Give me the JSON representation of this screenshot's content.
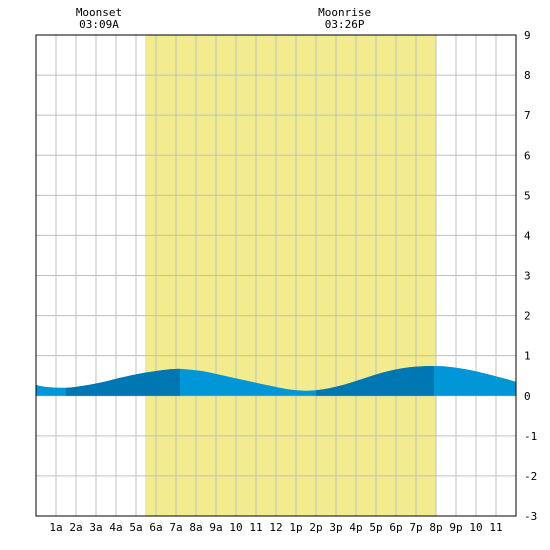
{
  "chart_data": {
    "type": "area",
    "title": "",
    "xlabel": "",
    "ylabel": "",
    "x_tick_labels": [
      "1a",
      "2a",
      "3a",
      "4a",
      "5a",
      "6a",
      "7a",
      "8a",
      "9a",
      "10",
      "11",
      "12",
      "1p",
      "2p",
      "3p",
      "4p",
      "5p",
      "6p",
      "7p",
      "8p",
      "9p",
      "10",
      "11"
    ],
    "y_ticks": [
      -3,
      -2,
      -1,
      0,
      1,
      2,
      3,
      4,
      5,
      6,
      7,
      8,
      9
    ],
    "xlim_hours": [
      0,
      24
    ],
    "ylim": [
      -3,
      9
    ],
    "grid": true,
    "daylight": {
      "start": "05:27",
      "end": "20:00"
    },
    "moon_events": [
      {
        "label": "Moonset",
        "time": "03:09A",
        "hour": 3.15
      },
      {
        "label": "Moonrise",
        "time": "03:26P",
        "hour": 15.43
      }
    ],
    "tide_series": {
      "x_hours": [
        0,
        0.5,
        1.5,
        2.5,
        3.5,
        4.5,
        5.5,
        6.5,
        7.1,
        7.5,
        8.5,
        9.5,
        10.5,
        11.5,
        12.5,
        13.2,
        13.8,
        14.5,
        15.5,
        16.5,
        17.5,
        18.5,
        19.5,
        19.9,
        20.5,
        21.5,
        22.5,
        23.5,
        24
      ],
      "y_feet": [
        0.27,
        0.22,
        0.2,
        0.26,
        0.36,
        0.48,
        0.58,
        0.65,
        0.67,
        0.66,
        0.6,
        0.49,
        0.38,
        0.27,
        0.17,
        0.13,
        0.13,
        0.17,
        0.29,
        0.45,
        0.6,
        0.7,
        0.74,
        0.74,
        0.73,
        0.66,
        0.55,
        0.42,
        0.35
      ]
    },
    "highlight_bands_hours": [
      [
        1.5,
        7.2
      ],
      [
        14.0,
        19.9
      ]
    ],
    "colors": {
      "daylight": "#f2ec8e",
      "tide": "#0096d7",
      "tide_dark": "#0077b3",
      "grid": "#c0c0c0",
      "plot_border": "#000000"
    }
  }
}
